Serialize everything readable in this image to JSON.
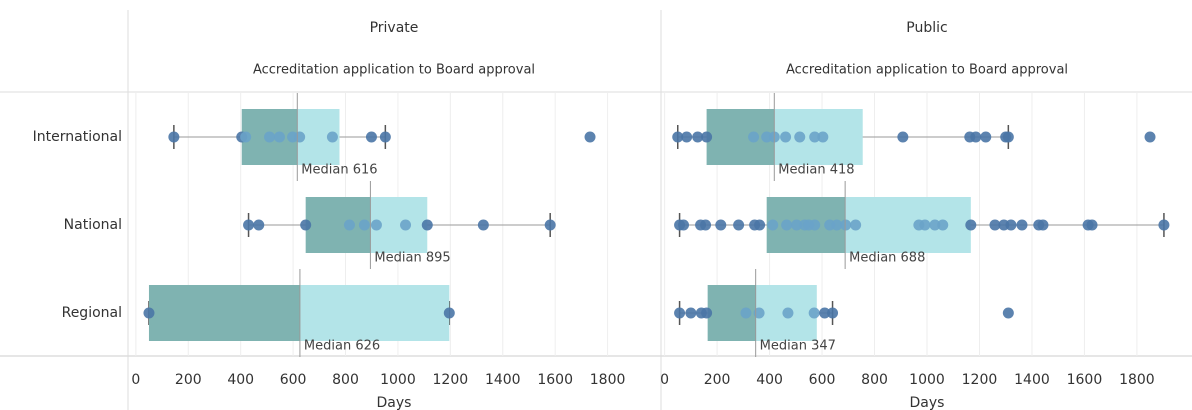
{
  "chart_data": [
    {
      "type": "boxplot",
      "title": "Private",
      "subtitle": "Accreditation application to Board approval",
      "categories": [
        "International",
        "National",
        "Regional"
      ],
      "boxes": [
        {
          "min": 145,
          "q1": 404,
          "median": 616,
          "q3": 777,
          "max": 952
        },
        {
          "min": 430,
          "q1": 648,
          "median": 895,
          "q3": 1112,
          "max": 1581
        },
        {
          "min": 50,
          "q1": 50,
          "median": 626,
          "q3": 1196,
          "max": 1196
        }
      ],
      "median_labels": [
        "Median 616",
        "Median 895",
        "Median 626"
      ],
      "points": [
        [
          145,
          404,
          419,
          510,
          548,
          598,
          625,
          750,
          899,
          952,
          1733
        ],
        [
          430,
          469,
          648,
          815,
          872,
          918,
          1029,
          1112,
          1326,
          1581
        ],
        [
          50,
          1196
        ]
      ],
      "xlabel": "Days",
      "xlim": [
        -30,
        2000
      ],
      "xticks": [
        0,
        200,
        400,
        600,
        800,
        1000,
        1200,
        1400,
        1600,
        1800
      ],
      "grid": true
    },
    {
      "type": "boxplot",
      "title": "Public",
      "subtitle": "Accreditation application to Board approval",
      "boxes": [
        {
          "min": 50,
          "q1": 160,
          "median": 418,
          "q3": 755,
          "max": 1310
        },
        {
          "min": 57,
          "q1": 389,
          "median": 688,
          "q3": 1167,
          "max": 1903
        },
        {
          "min": 57,
          "q1": 164,
          "median": 347,
          "q3": 580,
          "max": 640
        }
      ],
      "median_labels": [
        "Median 418",
        "Median 688",
        "Median 347"
      ],
      "points": [
        [
          50,
          84,
          126,
          160,
          339,
          389,
          418,
          461,
          515,
          572,
          603,
          908,
          1163,
          1186,
          1224,
          1300,
          1310,
          1850
        ],
        [
          57,
          72,
          137,
          156,
          214,
          282,
          343,
          362,
          412,
          465,
          503,
          534,
          549,
          572,
          629,
          656,
          690,
          728,
          969,
          992,
          1030,
          1060,
          1167,
          1259,
          1293,
          1320,
          1362,
          1426,
          1442,
          1614,
          1629,
          1903
        ],
        [
          57,
          100,
          140,
          160,
          310,
          360,
          470,
          570,
          610,
          640,
          1310
        ]
      ],
      "xlabel": "Days",
      "xlim": [
        -10,
        2010
      ],
      "xticks": [
        0,
        200,
        400,
        600,
        800,
        1000,
        1200,
        1400,
        1600,
        1800
      ],
      "grid": true
    }
  ]
}
